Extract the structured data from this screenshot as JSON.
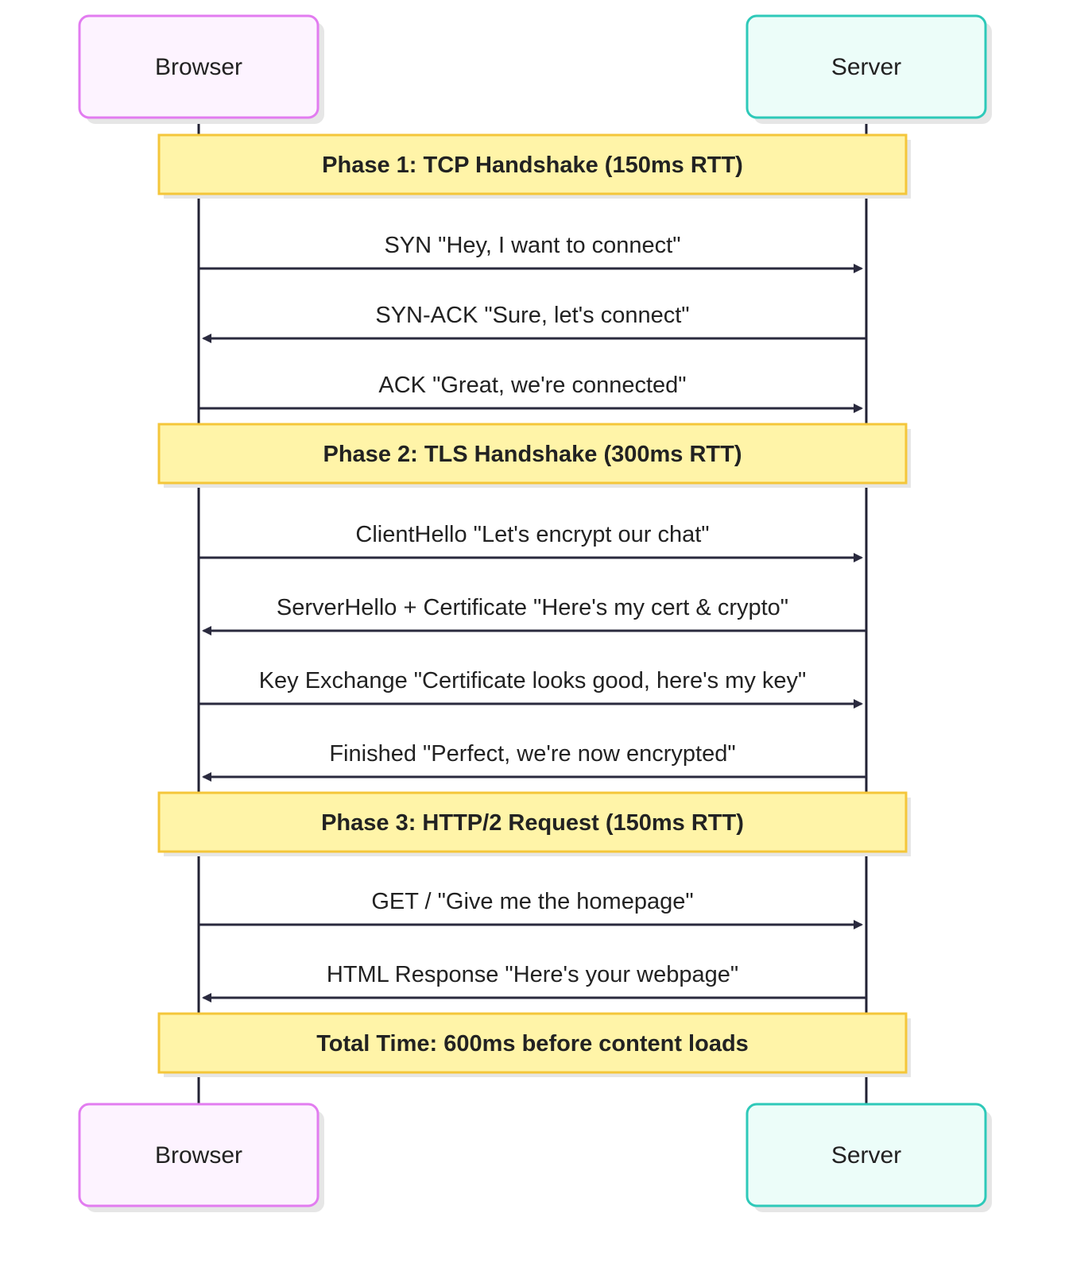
{
  "participants": {
    "browser": {
      "label": "Browser",
      "fill": "#fdf3ff",
      "stroke": "#e27cf0"
    },
    "server": {
      "label": "Server",
      "fill": "#ecfdf9",
      "stroke": "#2ec9b9"
    }
  },
  "colors": {
    "lifeline": "#222233",
    "arrow": "#2a2a3e",
    "note_fill": "#fff4a8",
    "note_stroke": "#f4c63a",
    "shadow": "#e6e6e6"
  },
  "sequence": [
    {
      "type": "note",
      "text": "Phase 1: TCP Handshake (150ms RTT)"
    },
    {
      "type": "message",
      "from": "browser",
      "to": "server",
      "text": "SYN \"Hey, I want to connect\""
    },
    {
      "type": "message",
      "from": "server",
      "to": "browser",
      "text": "SYN-ACK \"Sure, let's connect\""
    },
    {
      "type": "message",
      "from": "browser",
      "to": "server",
      "text": "ACK \"Great, we're connected\""
    },
    {
      "type": "note",
      "text": "Phase 2: TLS Handshake (300ms RTT)"
    },
    {
      "type": "message",
      "from": "browser",
      "to": "server",
      "text": "ClientHello \"Let's encrypt our chat\""
    },
    {
      "type": "message",
      "from": "server",
      "to": "browser",
      "text": "ServerHello + Certificate \"Here's my cert & crypto\""
    },
    {
      "type": "message",
      "from": "browser",
      "to": "server",
      "text": "Key Exchange \"Certificate looks good, here's my key\""
    },
    {
      "type": "message",
      "from": "server",
      "to": "browser",
      "text": "Finished \"Perfect, we're now encrypted\""
    },
    {
      "type": "note",
      "text": "Phase 3: HTTP/2 Request (150ms RTT)"
    },
    {
      "type": "message",
      "from": "browser",
      "to": "server",
      "text": "GET / \"Give me the homepage\""
    },
    {
      "type": "message",
      "from": "server",
      "to": "browser",
      "text": "HTML Response \"Here's your webpage\""
    },
    {
      "type": "note",
      "text": "Total Time: 600ms before content loads"
    }
  ]
}
